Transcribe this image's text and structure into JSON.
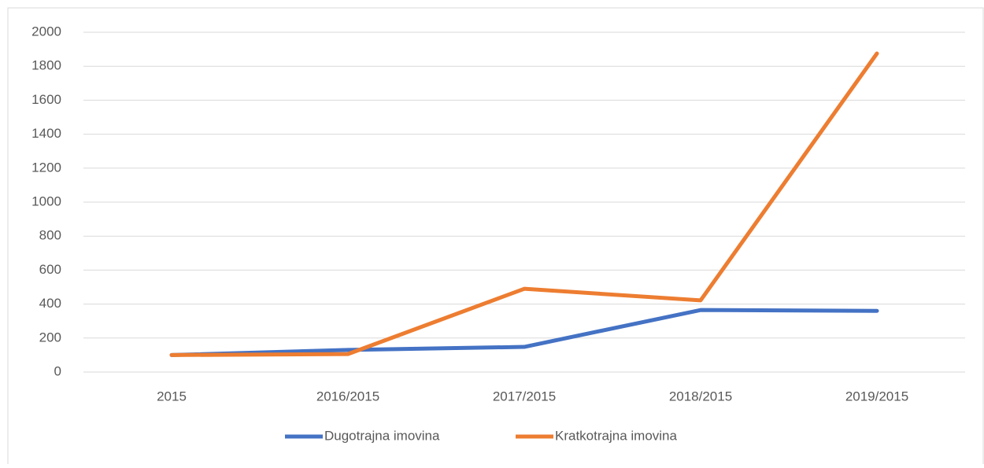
{
  "chart_data": {
    "type": "line",
    "categories": [
      "2015",
      "2016/2015",
      "2017/2015",
      "2018/2015",
      "2019/2015"
    ],
    "series": [
      {
        "name": "Dugotrajna imovina",
        "color": "#4472c4",
        "values": [
          100,
          130,
          148,
          365,
          360
        ]
      },
      {
        "name": "Kratkotrajna imovina",
        "color": "#ed7d31",
        "values": [
          100,
          106,
          490,
          422,
          1875
        ]
      }
    ],
    "ylim": [
      0,
      2000
    ],
    "yticks": [
      0,
      200,
      400,
      600,
      800,
      1000,
      1200,
      1400,
      1600,
      1800,
      2000
    ],
    "grid": true,
    "legend": "bottom"
  }
}
